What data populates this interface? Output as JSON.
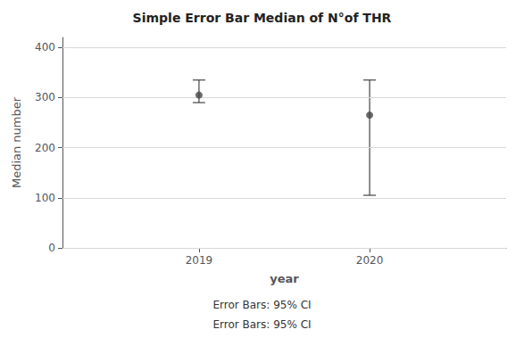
{
  "chart_data": {
    "type": "errorbar",
    "title": "Simple Error Bar Median of N°of THR",
    "xlabel": "year",
    "ylabel": "Median number",
    "x": [
      2019,
      2020
    ],
    "values": [
      305,
      265
    ],
    "lower": [
      290,
      105
    ],
    "upper": [
      335,
      335
    ],
    "color": "#444444",
    "xlim": [
      2018.2,
      2020.8
    ],
    "xticks": [
      2019,
      2020
    ],
    "ylim": [
      0,
      420
    ],
    "yticks": [
      0,
      100,
      200,
      300,
      400
    ],
    "grid": true,
    "annotations": [
      "Error Bars: 95% CI",
      "Error Bars: 95% CI"
    ]
  }
}
